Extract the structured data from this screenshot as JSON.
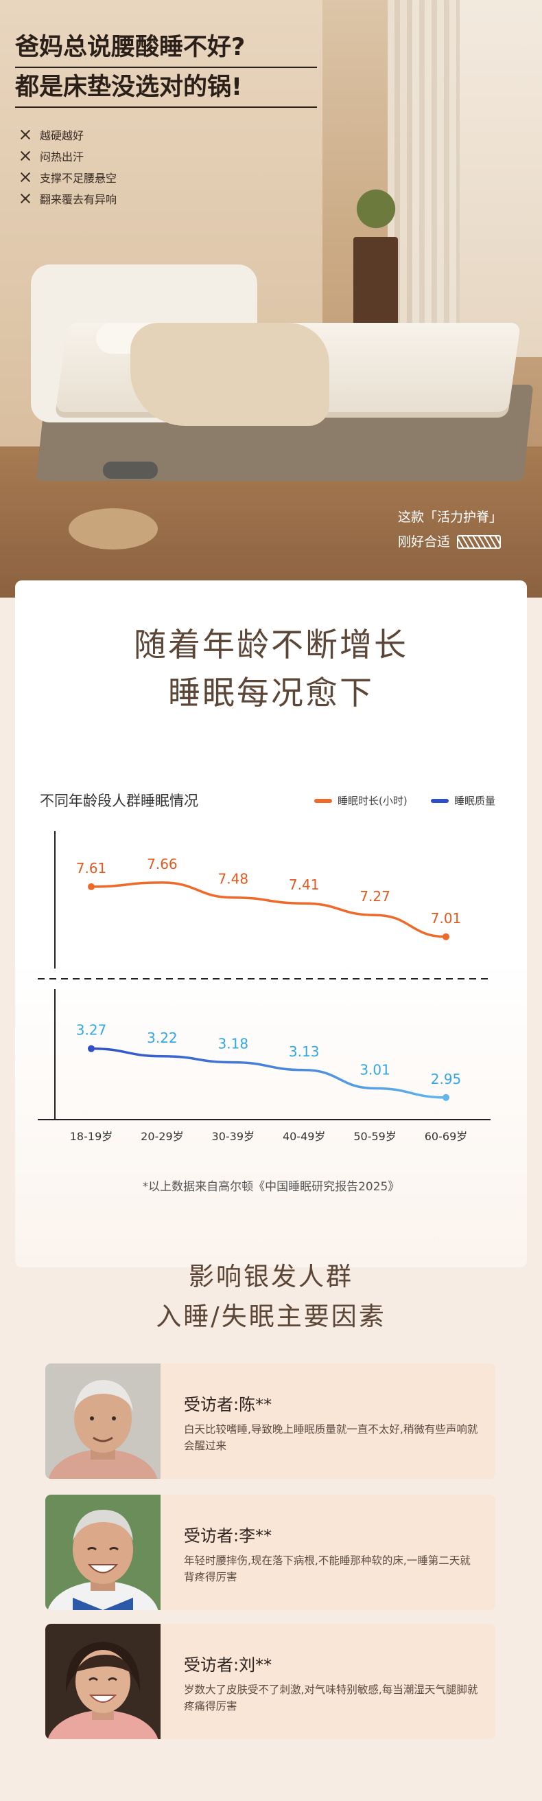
{
  "hero": {
    "title_line1": "爸妈总说腰酸睡不好?",
    "title_line2": "都是床垫没选对的锅!",
    "problems": [
      "越硬越好",
      "闷热出汗",
      "支撑不足腰悬空",
      "翻来覆去有异响"
    ],
    "product_tag_line1": "这款「活力护脊」",
    "product_tag_line2": "刚好合适"
  },
  "sleep_section": {
    "heading_line1": "随着年龄不断增长",
    "heading_line2": "睡眠每况愈下",
    "chart_caption": "不同年龄段人群睡眠情况",
    "source_note": "*以上数据来自高尔顿《中国睡眠研究报告2025》"
  },
  "chart_data": {
    "type": "line",
    "title": "不同年龄段人群睡眠情况",
    "categories": [
      "18-19岁",
      "20-29岁",
      "30-39岁",
      "40-49岁",
      "50-59岁",
      "60-69岁"
    ],
    "series": [
      {
        "name": "睡眠时长(小时)",
        "values": [
          7.61,
          7.66,
          7.48,
          7.41,
          7.27,
          7.01
        ],
        "color": "#ee6a2a",
        "color_end": "#ee6a2a"
      },
      {
        "name": "睡眠质量",
        "values": [
          3.27,
          3.22,
          3.18,
          3.13,
          3.01,
          2.95
        ],
        "color": "#2f4fc7",
        "color_end": "#62b6ec"
      }
    ],
    "label_colors": [
      "#e2581e",
      "#33a7e4"
    ],
    "legend_position": "top-right",
    "grid": false
  },
  "factors_section": {
    "heading_line1": "影响银发人群",
    "heading_line2": "入睡/失眠主要因素",
    "interviews": [
      {
        "name": "受访者:陈**",
        "quote": "白天比较嗜睡,导致晚上睡眠质量就一直不太好,稍微有些声响就会醒过来"
      },
      {
        "name": "受访者:李**",
        "quote": "年轻时腰摔伤,现在落下病根,不能睡那种软的床,一睡第二天就背疼得厉害"
      },
      {
        "name": "受访者:刘**",
        "quote": "岁数大了皮肤受不了刺激,对气味特别敏感,每当潮湿天气腿脚就疼痛得厉害"
      }
    ]
  }
}
